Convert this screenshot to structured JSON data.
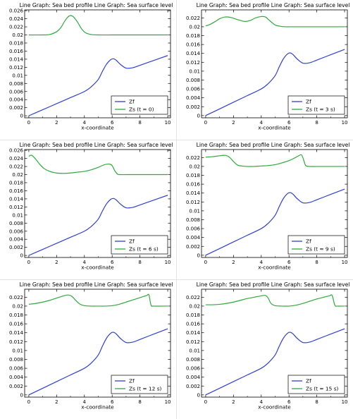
{
  "chart_data": [
    {
      "type": "line",
      "title": "Line Graph: Sea bed profile  Line Graph: Sea surface level",
      "xlabel": "x-coordinate",
      "xlim": [
        -0.3,
        10.2
      ],
      "ylim": [
        -0.0005,
        0.0262
      ],
      "xticks": [
        "0",
        "2",
        "4",
        "6",
        "8",
        "10"
      ],
      "yticks": [
        "0",
        "0.002",
        "0.004",
        "0.006",
        "0.008",
        "0.01",
        "0.012",
        "0.014",
        "0.016",
        "0.018",
        "0.02",
        "0.022",
        "0.024",
        "0.026"
      ],
      "legend_position": "bottom-right",
      "series": [
        {
          "name": "Zf",
          "color": "#2f3fd9",
          "x": [
            0,
            1,
            2,
            3,
            4,
            4.5,
            5,
            5.3,
            5.6,
            5.9,
            6.1,
            6.3,
            6.6,
            7,
            7.5,
            8,
            9,
            10
          ],
          "y": [
            0,
            0.0015,
            0.003,
            0.0045,
            0.006,
            0.0072,
            0.009,
            0.011,
            0.0128,
            0.0139,
            0.0141,
            0.0137,
            0.0127,
            0.0118,
            0.0119,
            0.0125,
            0.0137,
            0.0149
          ]
        },
        {
          "name": "Zs (t = 0)",
          "color": "#2eaa3c",
          "x": [
            0,
            1,
            1.5,
            2,
            2.3,
            2.6,
            2.8,
            3,
            3.2,
            3.5,
            3.8,
            4.1,
            4.5,
            5,
            6,
            7,
            8,
            9,
            10
          ],
          "y": [
            0.02,
            0.02,
            0.0201,
            0.0208,
            0.0218,
            0.0235,
            0.0244,
            0.0248,
            0.0245,
            0.0232,
            0.0215,
            0.0205,
            0.0201,
            0.02,
            0.02,
            0.02,
            0.02,
            0.02,
            0.02
          ]
        }
      ]
    },
    {
      "type": "line",
      "title": "Line Graph: Sea bed profile  Line Graph: Sea surface level",
      "xlabel": "x-coordinate",
      "xlim": [
        -0.3,
        10.2
      ],
      "ylim": [
        -0.0005,
        0.0238
      ],
      "xticks": [
        "0",
        "2",
        "4",
        "6",
        "8",
        "10"
      ],
      "yticks": [
        "0",
        "0.002",
        "0.004",
        "0.006",
        "0.008",
        "0.01",
        "0.012",
        "0.014",
        "0.016",
        "0.018",
        "0.02",
        "0.022"
      ],
      "legend_position": "bottom-right",
      "series": [
        {
          "name": "Zf",
          "color": "#2f3fd9",
          "x": [
            0,
            1,
            2,
            3,
            4,
            4.5,
            5,
            5.3,
            5.6,
            5.9,
            6.1,
            6.3,
            6.6,
            7,
            7.5,
            8,
            9,
            10
          ],
          "y": [
            0,
            0.0015,
            0.003,
            0.0045,
            0.006,
            0.0072,
            0.009,
            0.011,
            0.0128,
            0.0139,
            0.0141,
            0.0137,
            0.0127,
            0.0118,
            0.0119,
            0.0125,
            0.0137,
            0.0149
          ]
        },
        {
          "name": "Zs (t = 3 s)",
          "color": "#2eaa3c",
          "x": [
            0,
            0.3,
            0.7,
            1,
            1.4,
            1.8,
            2.3,
            2.8,
            3.2,
            3.6,
            4,
            4.3,
            4.6,
            5,
            5.4,
            5.8,
            6.2,
            7,
            8,
            9,
            10
          ],
          "y": [
            0.0202,
            0.0205,
            0.0212,
            0.0218,
            0.0222,
            0.0221,
            0.0216,
            0.0212,
            0.0214,
            0.022,
            0.0223,
            0.0222,
            0.0214,
            0.0204,
            0.0201,
            0.02,
            0.02,
            0.02,
            0.02,
            0.02,
            0.02
          ]
        }
      ]
    },
    {
      "type": "line",
      "title": "Line Graph: Sea bed profile  Line Graph: Sea surface level",
      "xlabel": "x-coordinate",
      "xlim": [
        -0.3,
        10.2
      ],
      "ylim": [
        -0.0005,
        0.0262
      ],
      "xticks": [
        "0",
        "2",
        "4",
        "6",
        "8",
        "10"
      ],
      "yticks": [
        "0",
        "0.002",
        "0.004",
        "0.006",
        "0.008",
        "0.01",
        "0.012",
        "0.014",
        "0.016",
        "0.018",
        "0.02",
        "0.022",
        "0.024",
        "0.026"
      ],
      "legend_position": "bottom-right",
      "series": [
        {
          "name": "Zf",
          "color": "#2f3fd9",
          "x": [
            0,
            1,
            2,
            3,
            4,
            4.5,
            5,
            5.3,
            5.6,
            5.9,
            6.1,
            6.3,
            6.6,
            7,
            7.5,
            8,
            9,
            10
          ],
          "y": [
            0,
            0.0015,
            0.003,
            0.0045,
            0.006,
            0.0072,
            0.009,
            0.011,
            0.0128,
            0.0139,
            0.0141,
            0.0137,
            0.0127,
            0.0118,
            0.0119,
            0.0125,
            0.0137,
            0.0149
          ]
        },
        {
          "name": "Zs (t = 6 s)",
          "color": "#2eaa3c",
          "x": [
            0,
            0.2,
            0.5,
            0.8,
            1.1,
            1.5,
            2,
            2.5,
            3,
            3.5,
            4,
            4.5,
            5,
            5.4,
            5.8,
            6,
            6.2,
            6.4,
            6.6,
            7,
            8,
            9,
            10
          ],
          "y": [
            0.0245,
            0.0248,
            0.0238,
            0.0225,
            0.0215,
            0.0208,
            0.0204,
            0.0203,
            0.0204,
            0.0206,
            0.0208,
            0.0212,
            0.0218,
            0.0224,
            0.0226,
            0.0222,
            0.0209,
            0.0201,
            0.02,
            0.02,
            0.02,
            0.02,
            0.02
          ]
        }
      ]
    },
    {
      "type": "line",
      "title": "Line Graph: Sea bed profile  Line Graph: Sea surface level",
      "xlabel": "x-coordinate",
      "xlim": [
        -0.3,
        10.2
      ],
      "ylim": [
        -0.0005,
        0.0238
      ],
      "xticks": [
        "0",
        "2",
        "4",
        "6",
        "8",
        "10"
      ],
      "yticks": [
        "0",
        "0.002",
        "0.004",
        "0.006",
        "0.008",
        "0.01",
        "0.012",
        "0.014",
        "0.016",
        "0.018",
        "0.02",
        "0.022"
      ],
      "legend_position": "bottom-right",
      "series": [
        {
          "name": "Zf",
          "color": "#2f3fd9",
          "x": [
            0,
            1,
            2,
            3,
            4,
            4.5,
            5,
            5.3,
            5.6,
            5.9,
            6.1,
            6.3,
            6.6,
            7,
            7.5,
            8,
            9,
            10
          ],
          "y": [
            0,
            0.0015,
            0.003,
            0.0045,
            0.006,
            0.0072,
            0.009,
            0.011,
            0.0128,
            0.0139,
            0.0141,
            0.0137,
            0.0127,
            0.0118,
            0.0119,
            0.0125,
            0.0137,
            0.0149
          ]
        },
        {
          "name": "Zs (t = 9 s)",
          "color": "#2eaa3c",
          "x": [
            0,
            0.5,
            1,
            1.4,
            1.7,
            2,
            2.3,
            2.6,
            3,
            3.5,
            4,
            4.5,
            5,
            5.5,
            6,
            6.4,
            6.7,
            6.9,
            7.05,
            7.2,
            7.5,
            8,
            9,
            10
          ],
          "y": [
            0.0221,
            0.0222,
            0.0224,
            0.0225,
            0.0221,
            0.0211,
            0.0203,
            0.0201,
            0.02,
            0.02,
            0.0201,
            0.0202,
            0.0204,
            0.0208,
            0.0213,
            0.0219,
            0.0224,
            0.0226,
            0.0215,
            0.0202,
            0.02,
            0.02,
            0.02,
            0.02
          ]
        }
      ]
    },
    {
      "type": "line",
      "title": "Line Graph: Sea bed profile  Line Graph: Sea surface level",
      "xlabel": "x-coordinate",
      "xlim": [
        -0.3,
        10.2
      ],
      "ylim": [
        -0.0005,
        0.0238
      ],
      "xticks": [
        "0",
        "2",
        "4",
        "6",
        "8",
        "10"
      ],
      "yticks": [
        "0",
        "0.002",
        "0.004",
        "0.006",
        "0.008",
        "0.01",
        "0.012",
        "0.014",
        "0.016",
        "0.018",
        "0.02",
        "0.022"
      ],
      "legend_position": "bottom-right",
      "series": [
        {
          "name": "Zf",
          "color": "#2f3fd9",
          "x": [
            0,
            1,
            2,
            3,
            4,
            4.5,
            5,
            5.3,
            5.6,
            5.9,
            6.1,
            6.3,
            6.6,
            7,
            7.5,
            8,
            9,
            10
          ],
          "y": [
            0,
            0.0015,
            0.003,
            0.0045,
            0.006,
            0.0072,
            0.009,
            0.011,
            0.0128,
            0.0139,
            0.0141,
            0.0137,
            0.0127,
            0.0118,
            0.0119,
            0.0125,
            0.0137,
            0.0149
          ]
        },
        {
          "name": "Zs (t = 12 s)",
          "color": "#2eaa3c",
          "x": [
            0,
            0.5,
            1,
            1.5,
            2,
            2.5,
            2.8,
            3.1,
            3.4,
            3.7,
            4,
            4.5,
            5,
            5.5,
            6,
            6.5,
            7,
            7.5,
            8,
            8.3,
            8.5,
            8.65,
            8.8,
            9,
            10
          ],
          "y": [
            0.0204,
            0.0206,
            0.0209,
            0.0213,
            0.0218,
            0.0223,
            0.0225,
            0.0222,
            0.0212,
            0.0204,
            0.0201,
            0.02,
            0.02,
            0.02,
            0.0201,
            0.0204,
            0.0209,
            0.0214,
            0.0219,
            0.0222,
            0.0224,
            0.0225,
            0.0202,
            0.02,
            0.02
          ]
        }
      ]
    },
    {
      "type": "line",
      "title": "Line Graph: Sea bed profile  Line Graph: Sea surface level",
      "xlabel": "x-coordinate",
      "xlim": [
        -0.3,
        10.2
      ],
      "ylim": [
        -0.0005,
        0.0238
      ],
      "xticks": [
        "0",
        "2",
        "4",
        "6",
        "8",
        "10"
      ],
      "yticks": [
        "0",
        "0.002",
        "0.004",
        "0.006",
        "0.008",
        "0.01",
        "0.012",
        "0.014",
        "0.016",
        "0.018",
        "0.02",
        "0.022"
      ],
      "legend_position": "bottom-right",
      "series": [
        {
          "name": "Zf",
          "color": "#2f3fd9",
          "x": [
            0,
            1,
            2,
            3,
            4,
            4.5,
            5,
            5.3,
            5.6,
            5.9,
            6.1,
            6.3,
            6.6,
            7,
            7.5,
            8,
            9,
            10
          ],
          "y": [
            0,
            0.0015,
            0.003,
            0.0045,
            0.006,
            0.0072,
            0.009,
            0.011,
            0.0128,
            0.0139,
            0.0141,
            0.0137,
            0.0127,
            0.0118,
            0.0119,
            0.0125,
            0.0137,
            0.0149
          ]
        },
        {
          "name": "Zs (t = 15 s)",
          "color": "#2eaa3c",
          "x": [
            0,
            0.5,
            1,
            1.5,
            2,
            2.5,
            3,
            3.5,
            4,
            4.3,
            4.5,
            4.7,
            5,
            5.5,
            6,
            6.5,
            7,
            7.5,
            8,
            8.5,
            8.9,
            9.1,
            9.3,
            9.5,
            10
          ],
          "y": [
            0.0203,
            0.0203,
            0.0204,
            0.0206,
            0.0209,
            0.0213,
            0.0217,
            0.022,
            0.0223,
            0.0224,
            0.0218,
            0.0206,
            0.0201,
            0.02,
            0.02,
            0.0202,
            0.0206,
            0.0211,
            0.0216,
            0.022,
            0.0223,
            0.0224,
            0.0202,
            0.02,
            0.02
          ]
        }
      ]
    }
  ]
}
